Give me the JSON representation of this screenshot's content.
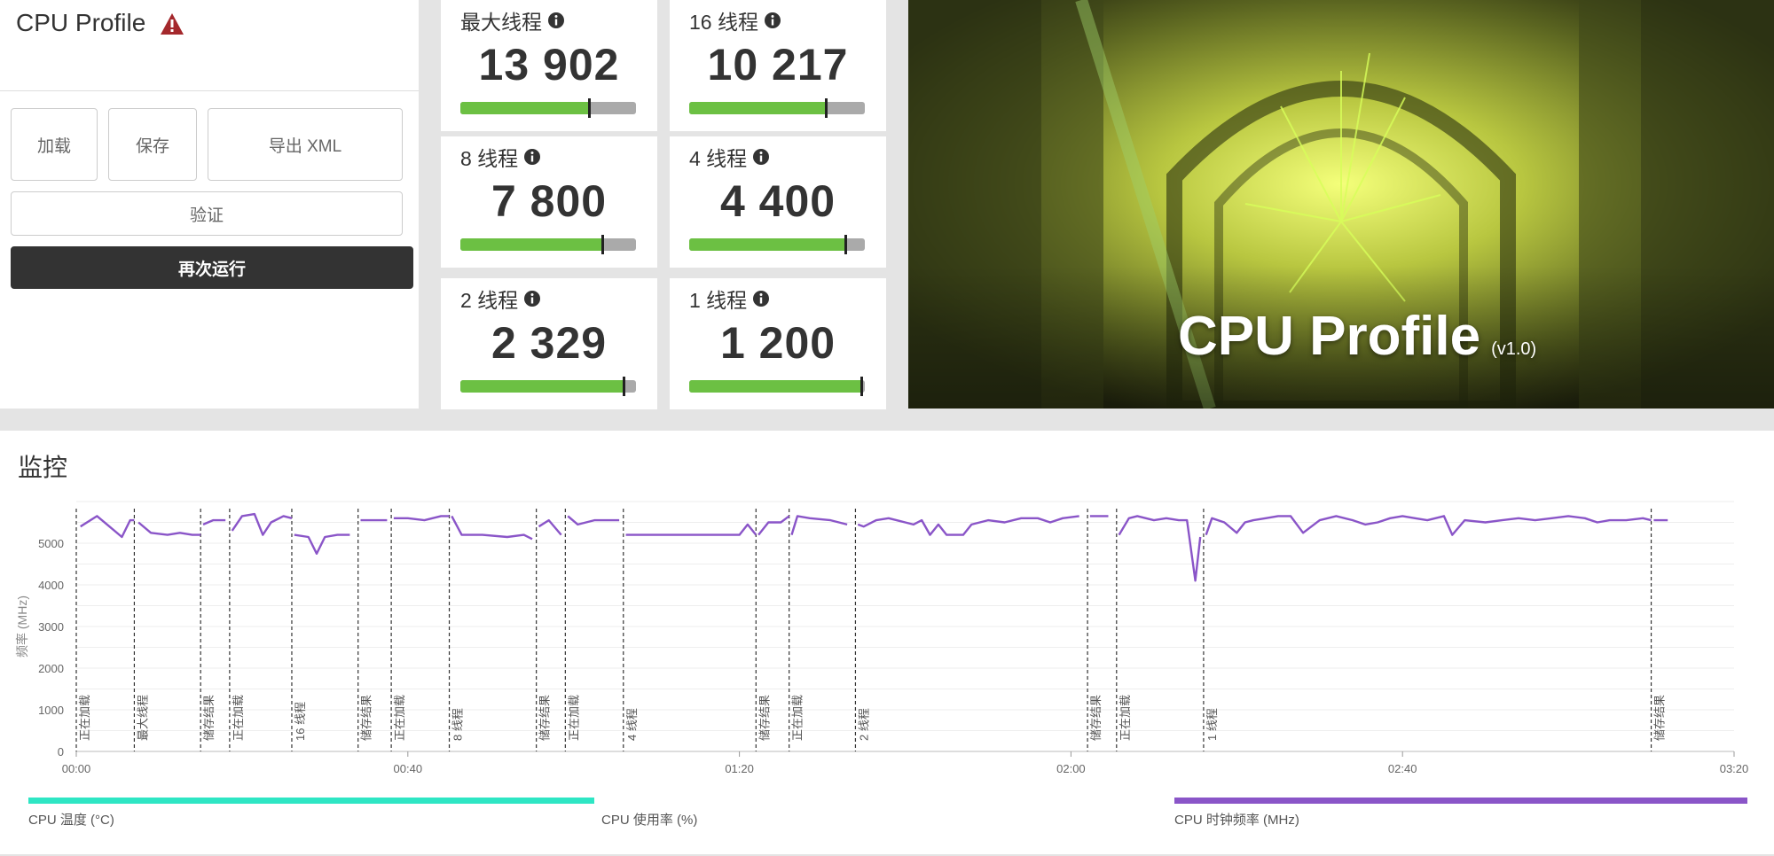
{
  "left": {
    "title": "CPU Profile",
    "buttons": {
      "load": "加载",
      "save": "保存",
      "export": "导出 XML",
      "verify": "验证",
      "run": "再次运行"
    }
  },
  "scores": [
    {
      "label": "最大线程",
      "value": "13 902",
      "level": 0.73
    },
    {
      "label": "16 线程",
      "value": "10 217",
      "level": 0.78
    },
    {
      "label": "8 线程",
      "value": "7 800",
      "level": 0.81
    },
    {
      "label": "4 线程",
      "value": "4 400",
      "level": 0.89
    },
    {
      "label": "2 线程",
      "value": "2 329",
      "level": 0.93
    },
    {
      "label": "1 线程",
      "value": "1 200",
      "level": 0.98
    }
  ],
  "banner": {
    "title": "CPU Profile",
    "version": "(v1.0)"
  },
  "monitor": {
    "title": "监控",
    "legend": [
      {
        "label": "CPU 温度 (°C)",
        "color": "#2ee6c4"
      },
      {
        "label": "CPU 使用率 (%)",
        "color": ""
      },
      {
        "label": "CPU 时钟频率 (MHz)",
        "color": "#8a55c8"
      }
    ]
  },
  "chart_data": {
    "type": "line",
    "ylabel": "频率 (MHz)",
    "ylim": [
      0,
      6000
    ],
    "yticks": [
      0,
      1000,
      2000,
      3000,
      4000,
      5000
    ],
    "xlim": [
      0,
      200
    ],
    "xticks": [
      "00:00",
      "00:40",
      "01:20",
      "02:00",
      "02:40",
      "03:20"
    ],
    "series_color": "#8a55c8",
    "markers": [
      {
        "t": 0,
        "label": "正在加载"
      },
      {
        "t": 7,
        "label": "最大线程"
      },
      {
        "t": 15,
        "label": "储存结果"
      },
      {
        "t": 18.5,
        "label": "正在加载"
      },
      {
        "t": 26,
        "label": "16 线程"
      },
      {
        "t": 34,
        "label": "储存结果"
      },
      {
        "t": 38,
        "label": "正在加载"
      },
      {
        "t": 45,
        "label": "8 线程"
      },
      {
        "t": 55.5,
        "label": "储存结果"
      },
      {
        "t": 59,
        "label": "正在加载"
      },
      {
        "t": 66,
        "label": "4 线程"
      },
      {
        "t": 82,
        "label": "储存结果"
      },
      {
        "t": 86,
        "label": "正在加载"
      },
      {
        "t": 94,
        "label": "2 线程"
      },
      {
        "t": 122,
        "label": "储存结果"
      },
      {
        "t": 125.5,
        "label": "正在加载"
      },
      {
        "t": 136,
        "label": "1 线程"
      },
      {
        "t": 190,
        "label": "储存结果"
      }
    ],
    "segments": [
      [
        [
          0.5,
          5400
        ],
        [
          2.5,
          5650
        ],
        [
          4,
          5400
        ],
        [
          5.5,
          5150
        ],
        [
          6.5,
          5550
        ],
        [
          7,
          5550
        ]
      ],
      [
        [
          7.5,
          5500
        ],
        [
          9,
          5250
        ],
        [
          11,
          5200
        ],
        [
          12.5,
          5250
        ],
        [
          14,
          5200
        ],
        [
          15,
          5200
        ]
      ],
      [
        [
          15.3,
          5450
        ],
        [
          16.5,
          5550
        ],
        [
          18,
          5550
        ]
      ],
      [
        [
          18.8,
          5300
        ],
        [
          20,
          5650
        ],
        [
          21.5,
          5700
        ],
        [
          22.5,
          5200
        ],
        [
          23.5,
          5500
        ],
        [
          25,
          5650
        ],
        [
          26,
          5600
        ]
      ],
      [
        [
          26.3,
          5200
        ],
        [
          28,
          5150
        ],
        [
          29,
          4750
        ],
        [
          30,
          5150
        ],
        [
          31.5,
          5200
        ],
        [
          33,
          5200
        ]
      ],
      [
        [
          34.3,
          5550
        ],
        [
          36,
          5550
        ],
        [
          37.5,
          5550
        ]
      ],
      [
        [
          38.3,
          5600
        ],
        [
          40,
          5600
        ],
        [
          42,
          5550
        ],
        [
          44,
          5650
        ],
        [
          45,
          5650
        ]
      ],
      [
        [
          45.3,
          5650
        ],
        [
          46.5,
          5200
        ],
        [
          49,
          5200
        ],
        [
          52,
          5150
        ],
        [
          54,
          5200
        ],
        [
          55,
          5100
        ]
      ],
      [
        [
          55.8,
          5400
        ],
        [
          57,
          5550
        ],
        [
          58.5,
          5200
        ]
      ],
      [
        [
          59.3,
          5650
        ],
        [
          60.5,
          5450
        ],
        [
          62.5,
          5550
        ],
        [
          65.5,
          5550
        ]
      ],
      [
        [
          66.3,
          5200
        ],
        [
          72,
          5200
        ],
        [
          80,
          5200
        ],
        [
          81,
          5450
        ],
        [
          82,
          5200
        ]
      ],
      [
        [
          82.3,
          5200
        ],
        [
          83.5,
          5500
        ],
        [
          85,
          5500
        ],
        [
          86,
          5650
        ]
      ],
      [
        [
          86.3,
          5200
        ],
        [
          87,
          5650
        ],
        [
          88.5,
          5600
        ],
        [
          91,
          5550
        ],
        [
          93,
          5450
        ]
      ],
      [
        [
          94.3,
          5450
        ],
        [
          95,
          5400
        ],
        [
          96.5,
          5550
        ],
        [
          98,
          5600
        ],
        [
          100,
          5500
        ],
        [
          101,
          5450
        ],
        [
          102,
          5550
        ],
        [
          103,
          5200
        ],
        [
          104,
          5450
        ],
        [
          105,
          5200
        ],
        [
          107,
          5200
        ],
        [
          108,
          5450
        ],
        [
          110,
          5550
        ],
        [
          112,
          5500
        ],
        [
          114,
          5600
        ],
        [
          116,
          5600
        ],
        [
          117.5,
          5500
        ],
        [
          119,
          5600
        ],
        [
          121,
          5650
        ]
      ],
      [
        [
          122.3,
          5650
        ],
        [
          124.5,
          5650
        ]
      ],
      [
        [
          125.8,
          5200
        ],
        [
          127,
          5600
        ],
        [
          128,
          5650
        ],
        [
          130,
          5550
        ],
        [
          131.5,
          5600
        ],
        [
          133,
          5550
        ],
        [
          134,
          5550
        ],
        [
          135,
          4100
        ],
        [
          135.6,
          5150
        ]
      ],
      [
        [
          136.3,
          5200
        ],
        [
          137,
          5600
        ],
        [
          138.5,
          5500
        ],
        [
          140,
          5250
        ],
        [
          141,
          5500
        ],
        [
          142,
          5550
        ],
        [
          143.5,
          5600
        ],
        [
          145,
          5650
        ],
        [
          146.5,
          5650
        ],
        [
          148,
          5250
        ],
        [
          150,
          5550
        ],
        [
          152,
          5650
        ],
        [
          154,
          5550
        ],
        [
          155.5,
          5450
        ],
        [
          157,
          5500
        ],
        [
          158.5,
          5600
        ],
        [
          160,
          5650
        ],
        [
          161.5,
          5600
        ],
        [
          163,
          5550
        ],
        [
          165,
          5650
        ],
        [
          166,
          5200
        ],
        [
          167.5,
          5550
        ],
        [
          170,
          5500
        ],
        [
          172,
          5550
        ],
        [
          174,
          5600
        ],
        [
          176,
          5550
        ],
        [
          178,
          5600
        ],
        [
          180,
          5650
        ],
        [
          182,
          5600
        ],
        [
          183.5,
          5500
        ],
        [
          185,
          5550
        ],
        [
          187,
          5550
        ],
        [
          189,
          5600
        ],
        [
          190,
          5550
        ]
      ],
      [
        [
          190.3,
          5550
        ],
        [
          192,
          5550
        ]
      ]
    ]
  }
}
